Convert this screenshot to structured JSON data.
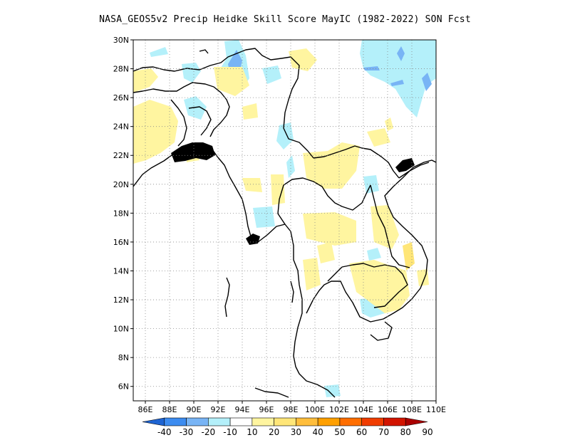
{
  "title": "NASA_GEOS5v2 Precip Heidke Skill Score MayIC (1982-2022) SON Fcst",
  "map": {
    "lat_labels": [
      "30N",
      "28N",
      "26N",
      "24N",
      "22N",
      "20N",
      "18N",
      "16N",
      "14N",
      "12N",
      "10N",
      "8N",
      "6N"
    ],
    "lon_labels": [
      "86E",
      "88E",
      "90E",
      "92E",
      "94E",
      "96E",
      "98E",
      "100E",
      "102E",
      "104E",
      "106E",
      "108E",
      "110E"
    ],
    "grid": "dotted",
    "lon_range": [
      85,
      110
    ],
    "lat_range": [
      5,
      30
    ]
  },
  "colorbar": {
    "labels": [
      "-40",
      "-30",
      "-20",
      "-10",
      "10",
      "20",
      "30",
      "40",
      "50",
      "60",
      "70",
      "80",
      "90"
    ],
    "colors": [
      "#1e64d2",
      "#3c8cf0",
      "#78b4f5",
      "#b4f0fa",
      "#ffffff",
      "#fff5a0",
      "#ffe678",
      "#ffbe3c",
      "#ffa000",
      "#ff6e00",
      "#f03c00",
      "#d21400",
      "#aa0000"
    ]
  }
}
